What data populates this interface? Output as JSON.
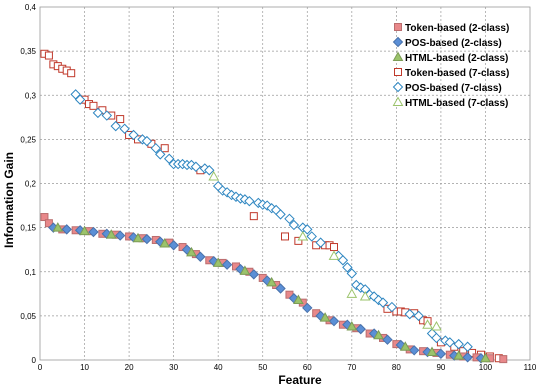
{
  "chart_data": {
    "type": "scatter",
    "xlabel": "Feature",
    "ylabel": "Information Gain",
    "xlim": [
      0,
      110
    ],
    "ylim": [
      0,
      0.4
    ],
    "x_ticks": [
      "0",
      "10",
      "20",
      "30",
      "40",
      "50",
      "60",
      "70",
      "80",
      "90",
      "100",
      "110"
    ],
    "y_ticks": [
      "0",
      "0,05",
      "0,1",
      "0,15",
      "0,2",
      "0,25",
      "0,3",
      "0,35",
      "0,4"
    ],
    "grid": true,
    "legend_position": "top-right",
    "series": [
      {
        "name": "Token-based (2-class)",
        "marker": "square",
        "filled": true,
        "color": "#e8888a",
        "x": [
          1,
          2,
          5,
          8,
          11,
          14,
          17,
          20,
          23,
          26,
          29,
          32,
          35,
          38,
          41,
          44,
          47,
          50,
          53,
          56,
          59,
          62,
          65,
          68,
          71,
          74,
          77,
          80,
          83,
          86,
          89,
          92,
          95,
          98,
          101,
          104
        ],
        "y": [
          0.162,
          0.155,
          0.148,
          0.147,
          0.146,
          0.143,
          0.142,
          0.14,
          0.138,
          0.136,
          0.133,
          0.128,
          0.12,
          0.113,
          0.11,
          0.106,
          0.1,
          0.093,
          0.085,
          0.074,
          0.065,
          0.053,
          0.045,
          0.04,
          0.036,
          0.03,
          0.025,
          0.018,
          0.012,
          0.01,
          0.008,
          0.006,
          0.004,
          0.003,
          0.002,
          0.001
        ]
      },
      {
        "name": "POS-based (2-class)",
        "marker": "diamond",
        "filled": true,
        "color": "#5b8fd6",
        "x": [
          3,
          6,
          9,
          12,
          15,
          18,
          21,
          24,
          27,
          30,
          33,
          36,
          39,
          42,
          45,
          48,
          51,
          54,
          57,
          60,
          63,
          66,
          69,
          72,
          75,
          78,
          81,
          84,
          87,
          90,
          93,
          96,
          99
        ],
        "y": [
          0.15,
          0.148,
          0.147,
          0.145,
          0.143,
          0.141,
          0.139,
          0.137,
          0.134,
          0.13,
          0.125,
          0.117,
          0.112,
          0.108,
          0.103,
          0.097,
          0.09,
          0.081,
          0.07,
          0.059,
          0.05,
          0.044,
          0.04,
          0.035,
          0.03,
          0.023,
          0.017,
          0.011,
          0.009,
          0.007,
          0.005,
          0.003,
          0.002
        ]
      },
      {
        "name": "HTML-based (2-class)",
        "marker": "triangle",
        "filled": true,
        "color": "#9bc36b",
        "x": [
          4,
          10,
          16,
          22,
          28,
          34,
          40,
          46,
          52,
          58,
          64,
          70,
          76,
          82,
          88,
          94,
          100
        ],
        "y": [
          0.15,
          0.146,
          0.142,
          0.138,
          0.132,
          0.122,
          0.11,
          0.101,
          0.088,
          0.068,
          0.048,
          0.038,
          0.028,
          0.015,
          0.009,
          0.005,
          0.002
        ]
      },
      {
        "name": "Token-based (7-class)",
        "marker": "square",
        "filled": false,
        "color": "#c0392b",
        "x": [
          1,
          2,
          3,
          4,
          5,
          6,
          7,
          10,
          11,
          12,
          14,
          16,
          18,
          20,
          22,
          25,
          28,
          36,
          48,
          55,
          58,
          62,
          64,
          65,
          66,
          78,
          80,
          81,
          82,
          84,
          86,
          87,
          90,
          93,
          95,
          97,
          99,
          101,
          103
        ],
        "y": [
          0.347,
          0.345,
          0.335,
          0.333,
          0.33,
          0.328,
          0.325,
          0.295,
          0.29,
          0.288,
          0.283,
          0.277,
          0.273,
          0.255,
          0.25,
          0.245,
          0.24,
          0.215,
          0.163,
          0.14,
          0.135,
          0.13,
          0.13,
          0.13,
          0.128,
          0.058,
          0.055,
          0.055,
          0.054,
          0.053,
          0.045,
          0.044,
          0.02,
          0.015,
          0.01,
          0.008,
          0.006,
          0.004,
          0.002
        ]
      },
      {
        "name": "POS-based (7-class)",
        "marker": "diamond",
        "filled": false,
        "color": "#2e86c1",
        "x": [
          8,
          9,
          13,
          15,
          17,
          19,
          21,
          23,
          24,
          26,
          27,
          29,
          30,
          31,
          32,
          33,
          34,
          35,
          37,
          38,
          40,
          41,
          42,
          43,
          44,
          45,
          46,
          47,
          49,
          50,
          51,
          52,
          53,
          54,
          56,
          57,
          59,
          60,
          61,
          63,
          67,
          68,
          69,
          70,
          71,
          72,
          73,
          74,
          75,
          76,
          77,
          79,
          83,
          85,
          88,
          89,
          91,
          92,
          94,
          96
        ],
        "y": [
          0.301,
          0.295,
          0.28,
          0.277,
          0.265,
          0.262,
          0.255,
          0.25,
          0.248,
          0.24,
          0.233,
          0.228,
          0.222,
          0.222,
          0.222,
          0.221,
          0.221,
          0.219,
          0.217,
          0.215,
          0.197,
          0.192,
          0.19,
          0.187,
          0.185,
          0.183,
          0.182,
          0.18,
          0.178,
          0.176,
          0.175,
          0.172,
          0.17,
          0.165,
          0.16,
          0.153,
          0.15,
          0.148,
          0.14,
          0.133,
          0.118,
          0.113,
          0.105,
          0.098,
          0.085,
          0.082,
          0.08,
          0.074,
          0.072,
          0.068,
          0.065,
          0.06,
          0.052,
          0.05,
          0.03,
          0.025,
          0.022,
          0.02,
          0.018,
          0.015
        ]
      },
      {
        "name": "HTML-based (7-class)",
        "marker": "triangle",
        "filled": false,
        "color": "#9bc36b",
        "x": [
          39,
          59,
          66,
          70,
          73,
          87,
          89
        ],
        "y": [
          0.208,
          0.14,
          0.118,
          0.075,
          0.072,
          0.04,
          0.038
        ]
      }
    ]
  }
}
